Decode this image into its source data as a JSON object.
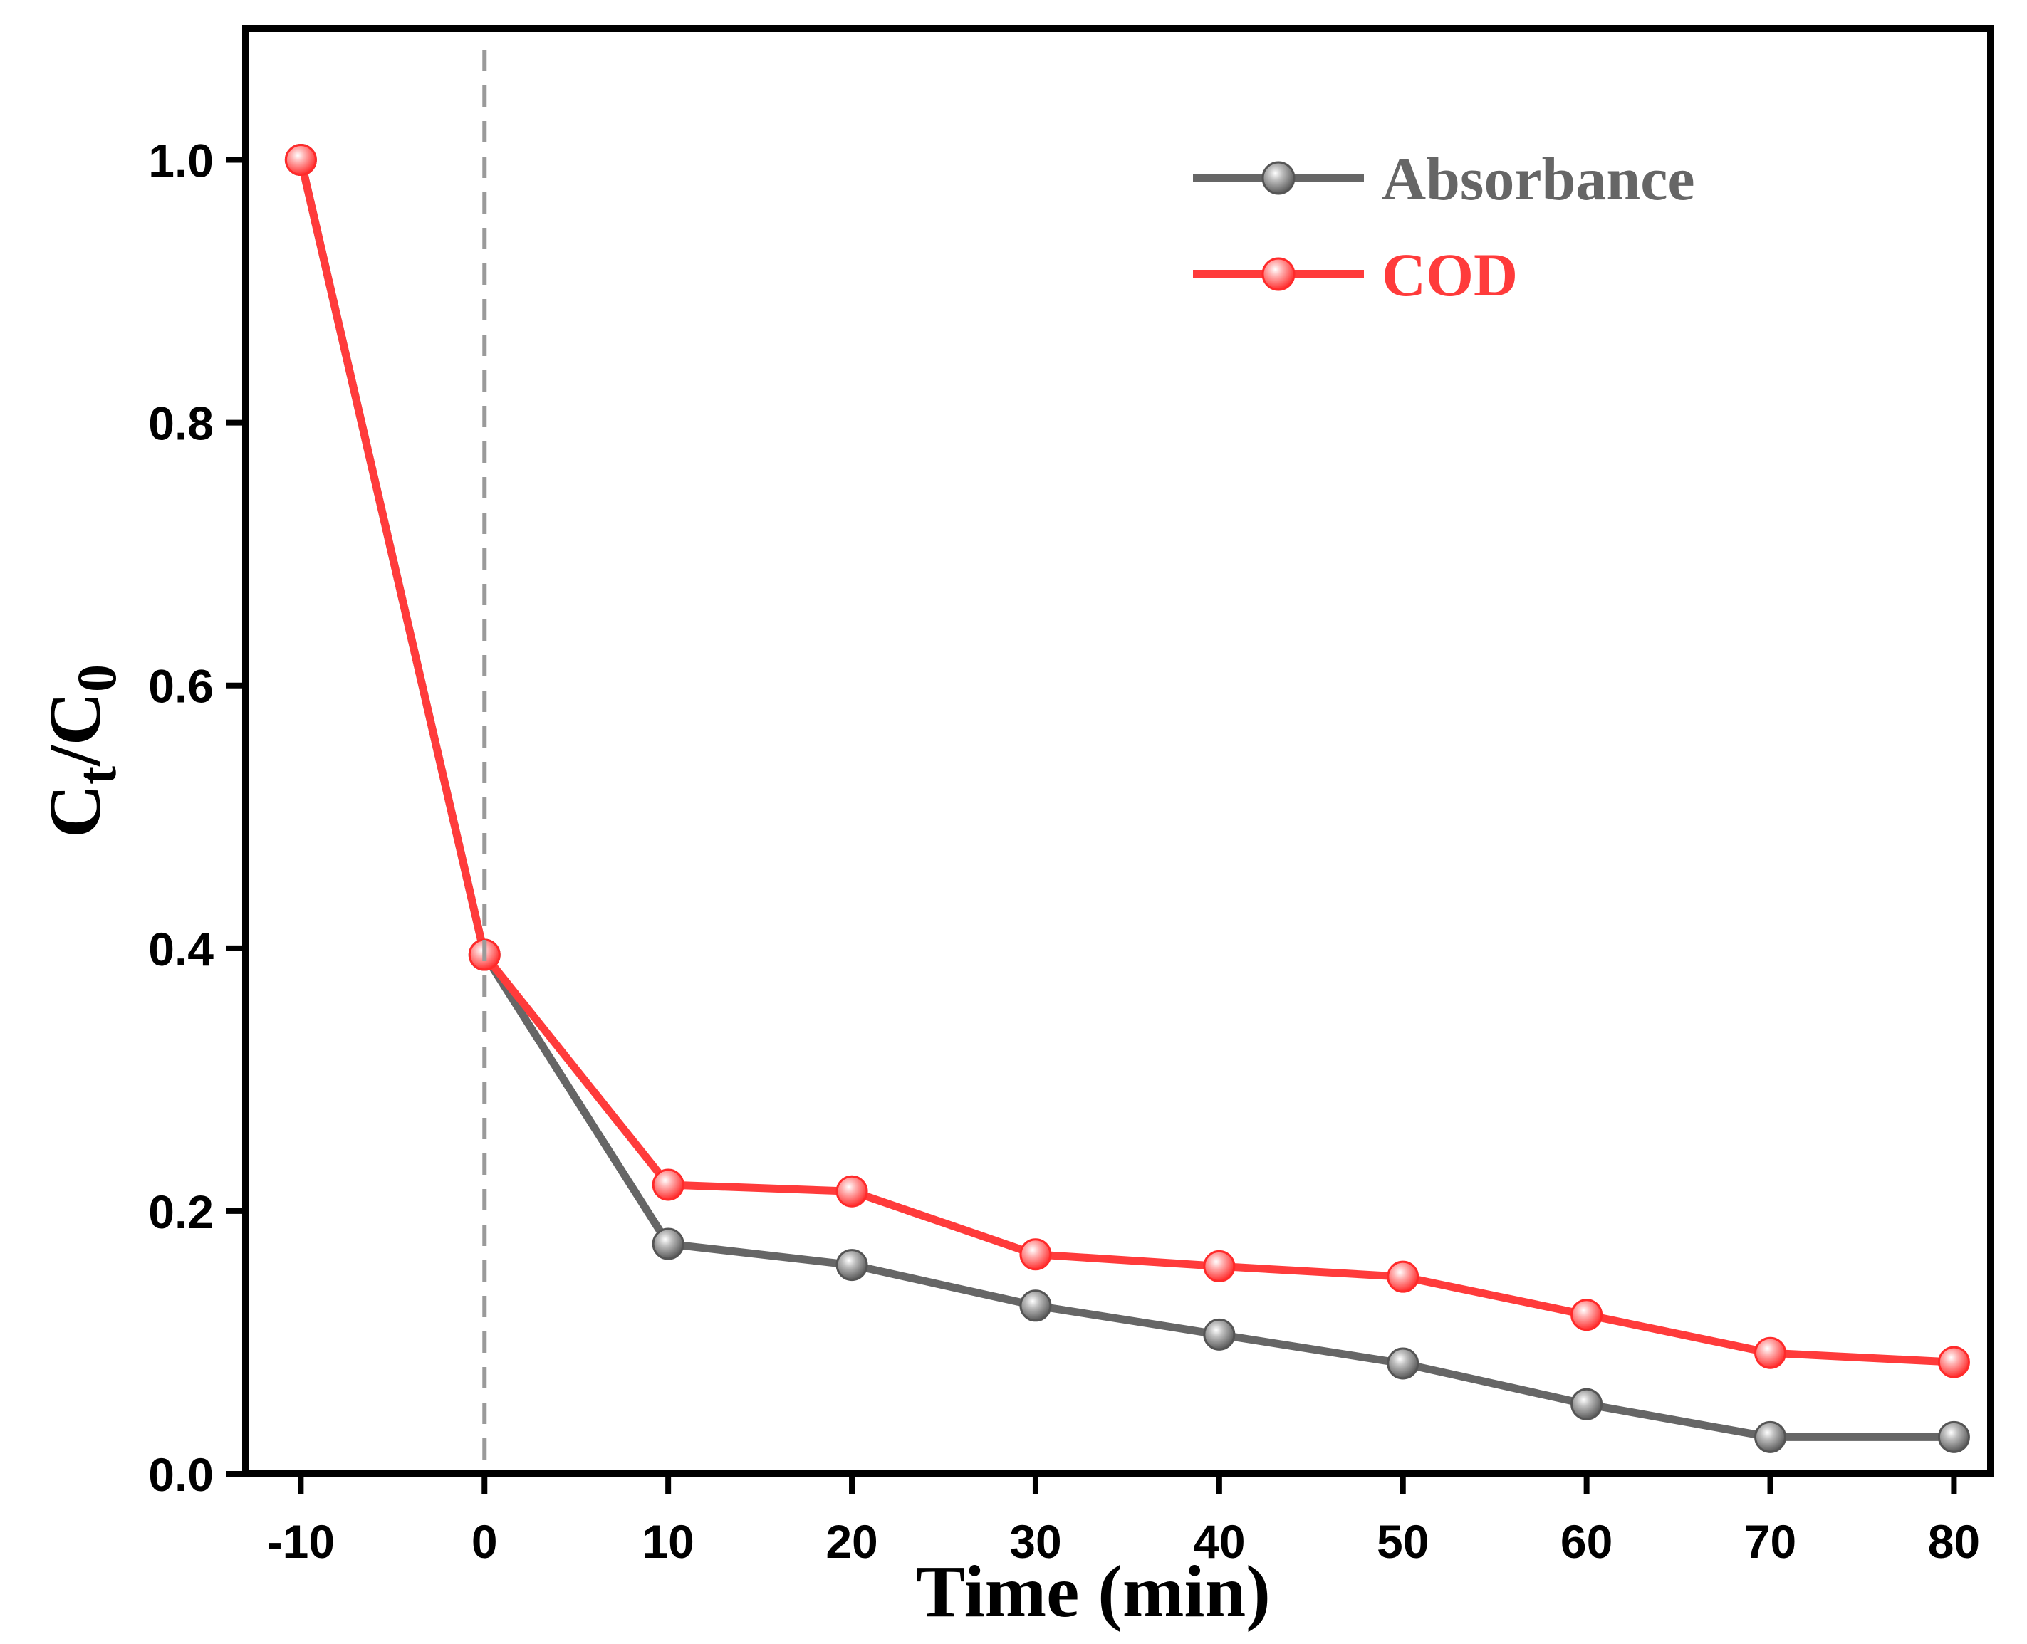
{
  "chart_data": {
    "type": "line",
    "title": "",
    "xlabel": "Time (min)",
    "ylabel": {
      "main": "C",
      "sub1": "t",
      "slash": "/",
      "main2": "C",
      "sub2": "0"
    },
    "x": [
      -10,
      0,
      10,
      20,
      30,
      40,
      50,
      60,
      70,
      80
    ],
    "xlim": [
      -13,
      82
    ],
    "ylim": [
      0,
      1.1
    ],
    "xticks": [
      "-10",
      "0",
      "10",
      "20",
      "30",
      "40",
      "50",
      "60",
      "70",
      "80"
    ],
    "yticks": [
      "0.0",
      "0.2",
      "0.4",
      "0.6",
      "0.8",
      "1.0"
    ],
    "ytick_values": [
      0,
      0.2,
      0.4,
      0.6,
      0.8,
      1.0
    ],
    "vline_x": 0,
    "grid": false,
    "legend_position": "top-right",
    "series": [
      {
        "name": "Absorbance",
        "color": "#666666",
        "marker_color": "#777777",
        "values": [
          1.0,
          0.395,
          0.175,
          0.159,
          0.128,
          0.106,
          0.084,
          0.053,
          0.028,
          0.028
        ]
      },
      {
        "name": "COD",
        "color": "#ff3b3b",
        "marker_color": "#ff4545",
        "values": [
          1.0,
          0.395,
          0.22,
          0.215,
          0.167,
          0.158,
          0.15,
          0.121,
          0.092,
          0.085
        ]
      }
    ]
  }
}
